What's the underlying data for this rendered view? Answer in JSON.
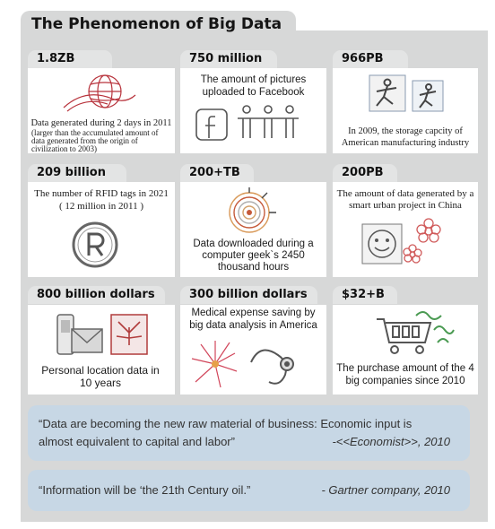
{
  "title": "The Phenomenon of Big Data",
  "cards": [
    {
      "figure": "1.8ZB",
      "caption": "Data generated during 2 days in 2011",
      "note": "(larger than the accumulated amount of data generated from the origin of civilization to 2003)",
      "icon": "globe-icon"
    },
    {
      "figure": "750 million",
      "caption": "The amount of pictures uploaded to Facebook",
      "icon": "facebook-people-icon"
    },
    {
      "figure": "966PB",
      "caption": "In 2009, the storage capcity of American manufacturing industry",
      "icon": "running-figures-icon"
    },
    {
      "figure": "209 billion",
      "caption": "The number of RFID tags in 2021",
      "note": "( 12 million in 2011 )",
      "icon": "registered-icon"
    },
    {
      "figure": "200+TB",
      "caption": "Data downloaded during a computer geek`s 2450 thousand hours",
      "icon": "disc-icon"
    },
    {
      "figure": "200PB",
      "caption": "The amount of data generated by a smart urban project in China",
      "icon": "smiley-flowers-icon"
    },
    {
      "figure": "800 billion dollars",
      "caption": "Personal location data in 10 years",
      "icon": "phone-mail-icon"
    },
    {
      "figure": "300 billion dollars",
      "caption": "Medical expense saving by big data analysis in America",
      "icon": "stethoscope-icon"
    },
    {
      "figure": "$32+B",
      "caption": "The purchase amount of the 4 big companies since 2010",
      "icon": "cart-money-icon"
    }
  ],
  "quotes": [
    {
      "line1": "“Data are becoming the new raw material of business: Economic input is",
      "line2": "almost equivalent to capital and labor”",
      "source": "-<<Economist>>, 2010"
    },
    {
      "line1": "“Information will be ‘the 21th Century oil.”",
      "source": "- Gartner company, 2010"
    }
  ]
}
